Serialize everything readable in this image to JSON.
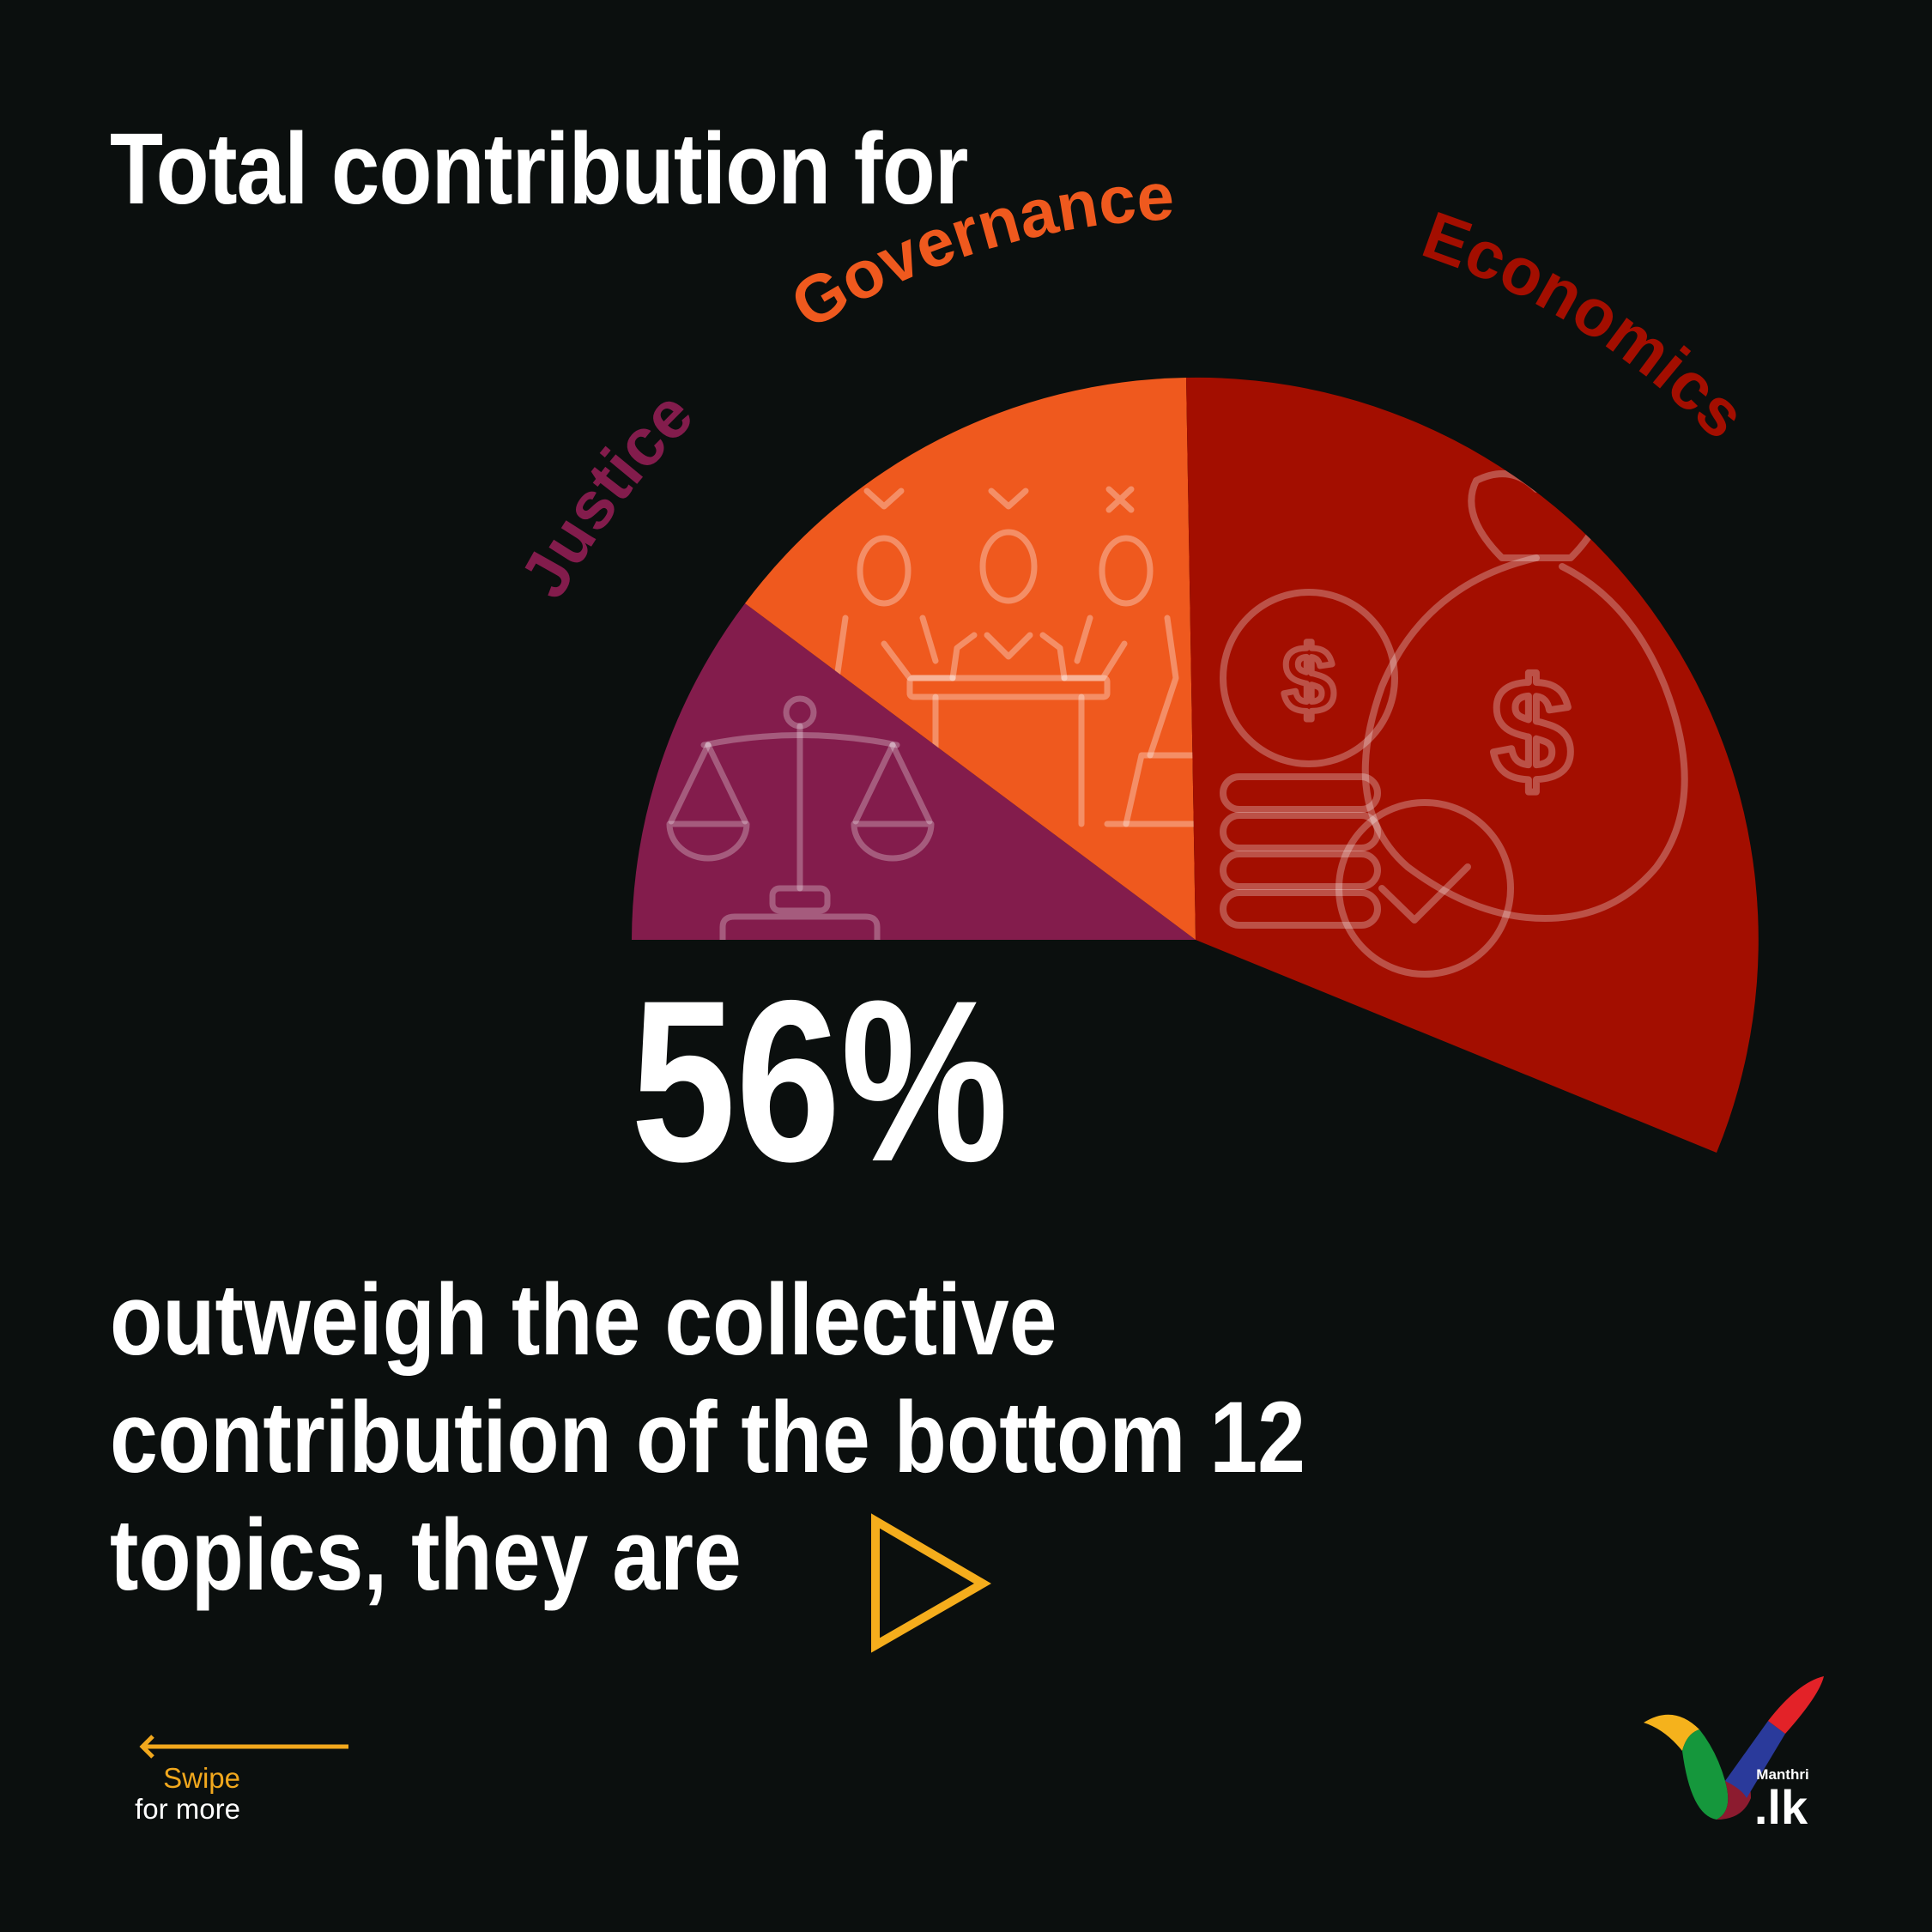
{
  "title": "Total contribution for",
  "highlight_value": "56%",
  "subtitle_lines": [
    "outweigh the collective",
    "contribution of the bottom 12",
    "topics, they are"
  ],
  "swipe": {
    "line1": "Swipe",
    "line2": "for more",
    "icon": "arrow-left-icon"
  },
  "logo": {
    "name": "Manthri",
    "domain": ".lk"
  },
  "chart_data": {
    "type": "pie",
    "style": "half-pie (semicircle), categories as curved outer labels, no legend",
    "total_percent": 56,
    "slices": [
      {
        "label": "Justice",
        "color": "#831c4c",
        "icon": "scales-of-justice-icon"
      },
      {
        "label": "Governance",
        "color": "#ef591e",
        "icon": "meeting-people-icon"
      },
      {
        "label": "Economics",
        "color": "#a30e00",
        "icon": "money-bag-coins-icon"
      }
    ],
    "annotation_color": "#f5ad1c"
  }
}
